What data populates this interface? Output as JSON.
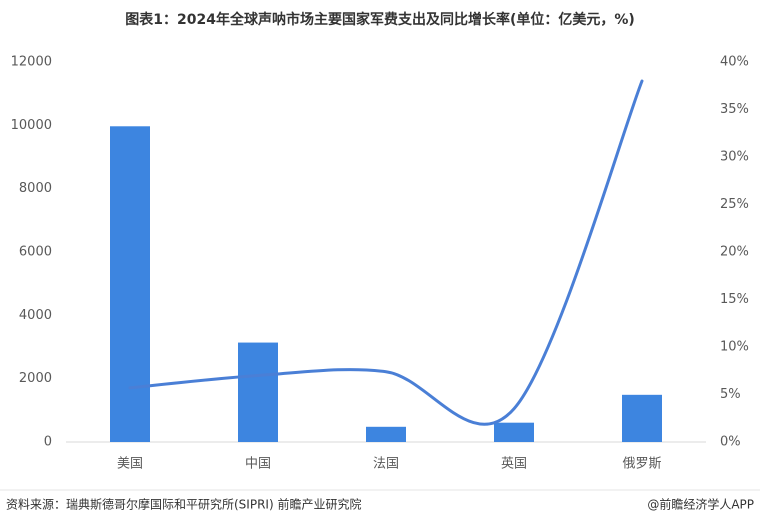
{
  "chart_data": {
    "type": "bar-line",
    "title": "图表1：2024年全球声呐市场主要国家军费支出及同比增长率(单位：亿美元，%)",
    "categories": [
      "美国",
      "中国",
      "法国",
      "英国",
      "俄罗斯"
    ],
    "series": [
      {
        "type": "bar",
        "color": "#3d85e0",
        "values": [
          9970,
          3140,
          480,
          610,
          1490
        ]
      },
      {
        "type": "line",
        "axis": "y2",
        "color": "#4a7fd6",
        "smooth": true,
        "values": [
          5.7,
          7.0,
          7.4,
          3.5,
          38
        ]
      }
    ],
    "ylim": [
      0,
      12000
    ],
    "yticks": [
      0,
      2000,
      4000,
      6000,
      8000,
      10000,
      12000
    ],
    "y2lim": [
      0,
      40
    ],
    "y2ticks": [
      {
        "value": 0,
        "label": "0%"
      },
      {
        "value": 5,
        "label": "5%"
      },
      {
        "value": 10,
        "label": "10%"
      },
      {
        "value": 15,
        "label": "15%"
      },
      {
        "value": 20,
        "label": "20%"
      },
      {
        "value": 25,
        "label": "25%"
      },
      {
        "value": 30,
        "label": "30%"
      },
      {
        "value": 35,
        "label": "35%"
      },
      {
        "value": 40,
        "label": "40%"
      }
    ],
    "grid": false,
    "source": "资料来源：瑞典斯德哥尔摩国际和平研究所(SIPRI) 前瞻产业研究院",
    "credit": "@前瞻经济学人APP"
  }
}
